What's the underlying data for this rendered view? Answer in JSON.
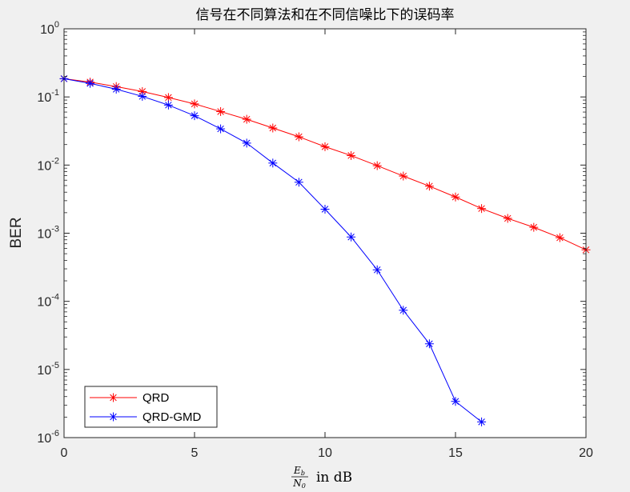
{
  "chart_data": {
    "type": "line",
    "title": "信号在不同算法和在不同信噪比下的误码率",
    "xlabel": {
      "frac_num": "E",
      "frac_num_sub": "b",
      "frac_den": "N",
      "frac_den_sub": "0",
      "suffix": "in dB"
    },
    "ylabel": "BER",
    "xlim": [
      0,
      20
    ],
    "ylim": [
      1e-06,
      1
    ],
    "yscale": "log",
    "grid": false,
    "legend_position": "bottom-left",
    "x_ticks": [
      0,
      5,
      10,
      15,
      20
    ],
    "y_ticks": [
      {
        "base": "10",
        "exp": "0"
      },
      {
        "base": "10",
        "exp": "-1"
      },
      {
        "base": "10",
        "exp": "-2"
      },
      {
        "base": "10",
        "exp": "-3"
      },
      {
        "base": "10",
        "exp": "-4"
      },
      {
        "base": "10",
        "exp": "-5"
      },
      {
        "base": "10",
        "exp": "-6"
      }
    ],
    "series": [
      {
        "name": "QRD",
        "color": "#ff0000",
        "marker": "asterisk",
        "x": [
          0,
          1,
          2,
          3,
          4,
          5,
          6,
          7,
          8,
          9,
          10,
          11,
          12,
          13,
          14,
          15,
          16,
          17,
          18,
          19,
          20
        ],
        "y": [
          0.185,
          0.165,
          0.142,
          0.12,
          0.098,
          0.079,
          0.061,
          0.047,
          0.035,
          0.026,
          0.0186,
          0.0138,
          0.0098,
          0.0069,
          0.0049,
          0.0034,
          0.0023,
          0.00165,
          0.00122,
          0.00086,
          0.00057
        ]
      },
      {
        "name": "QRD-GMD",
        "color": "#0000ff",
        "marker": "asterisk",
        "x": [
          0,
          1,
          2,
          3,
          4,
          5,
          6,
          7,
          8,
          9,
          10,
          11,
          12,
          13,
          14,
          15,
          16
        ],
        "y": [
          0.185,
          0.158,
          0.13,
          0.102,
          0.076,
          0.053,
          0.034,
          0.021,
          0.0107,
          0.0056,
          0.00225,
          0.00088,
          0.00029,
          7.4e-05,
          2.38e-05,
          3.4e-06,
          1.7e-06
        ]
      }
    ]
  }
}
